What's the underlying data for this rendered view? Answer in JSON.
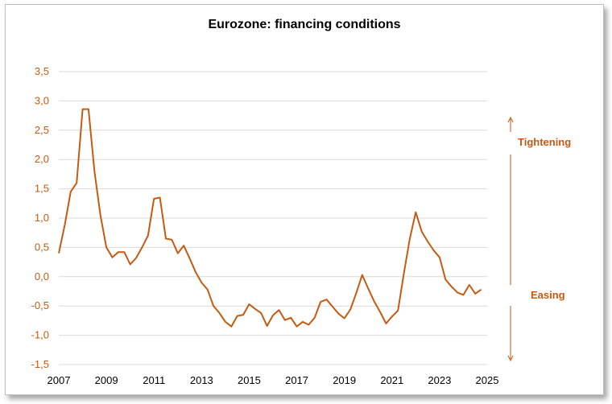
{
  "chart_data": {
    "type": "line",
    "title": "Eurozone: financing conditions",
    "xlabel": "",
    "ylabel": "",
    "xlim": [
      2007,
      2025
    ],
    "ylim": [
      -1.5,
      3.5
    ],
    "y_ticks": [
      "3,5",
      "3,0",
      "2,5",
      "2,0",
      "1,5",
      "1,0",
      "0,5",
      "0,0",
      "-0,5",
      "-1,0",
      "-1,5"
    ],
    "y_tick_values": [
      3.5,
      3.0,
      2.5,
      2.0,
      1.5,
      1.0,
      0.5,
      0.0,
      -0.5,
      -1.0,
      -1.5
    ],
    "x_ticks": [
      "2007",
      "2009",
      "2011",
      "2013",
      "2015",
      "2017",
      "2019",
      "2021",
      "2023",
      "2025"
    ],
    "x_tick_values": [
      2007,
      2009,
      2011,
      2013,
      2015,
      2017,
      2019,
      2021,
      2023,
      2025
    ],
    "grid": "horizontal",
    "line_color": "#c55a11",
    "annotations": {
      "upper": "Tightening",
      "lower": "Easing"
    },
    "series": [
      {
        "x": [
          2007.0,
          2007.25,
          2007.5,
          2007.75,
          2008.0,
          2008.25,
          2008.5,
          2008.75,
          2009.0,
          2009.25,
          2009.5,
          2009.75,
          2010.0,
          2010.25,
          2010.5,
          2010.75,
          2011.0,
          2011.25,
          2011.5,
          2011.75,
          2012.0,
          2012.25,
          2012.5,
          2012.75,
          2013.0,
          2013.25,
          2013.5,
          2013.75,
          2014.0,
          2014.25,
          2014.5,
          2014.75,
          2015.0,
          2015.25,
          2015.5,
          2015.75,
          2016.0,
          2016.25,
          2016.5,
          2016.75,
          2017.0,
          2017.25,
          2017.5,
          2017.75,
          2018.0,
          2018.25,
          2018.5,
          2018.75,
          2019.0,
          2019.25,
          2019.5,
          2019.75,
          2020.0,
          2020.25,
          2020.5,
          2020.75,
          2021.0,
          2021.25,
          2021.5,
          2021.75,
          2022.0,
          2022.25,
          2022.5,
          2022.75,
          2023.0,
          2023.25,
          2023.5,
          2023.75,
          2024.0,
          2024.25,
          2024.5,
          2024.75
        ],
        "y": [
          0.4,
          0.88,
          1.45,
          1.6,
          2.86,
          2.86,
          1.8,
          1.05,
          0.5,
          0.33,
          0.42,
          0.42,
          0.21,
          0.32,
          0.5,
          0.7,
          1.33,
          1.35,
          0.65,
          0.63,
          0.4,
          0.53,
          0.31,
          0.08,
          -0.1,
          -0.22,
          -0.5,
          -0.62,
          -0.77,
          -0.85,
          -0.67,
          -0.65,
          -0.47,
          -0.55,
          -0.62,
          -0.84,
          -0.66,
          -0.57,
          -0.74,
          -0.7,
          -0.85,
          -0.77,
          -0.82,
          -0.7,
          -0.43,
          -0.39,
          -0.51,
          -0.63,
          -0.71,
          -0.56,
          -0.28,
          0.03,
          -0.2,
          -0.42,
          -0.6,
          -0.8,
          -0.68,
          -0.58,
          0.06,
          0.65,
          1.1,
          0.77,
          0.6,
          0.45,
          0.33,
          -0.05,
          -0.17,
          -0.27,
          -0.31,
          -0.14,
          -0.29,
          -0.22
        ]
      }
    ]
  }
}
